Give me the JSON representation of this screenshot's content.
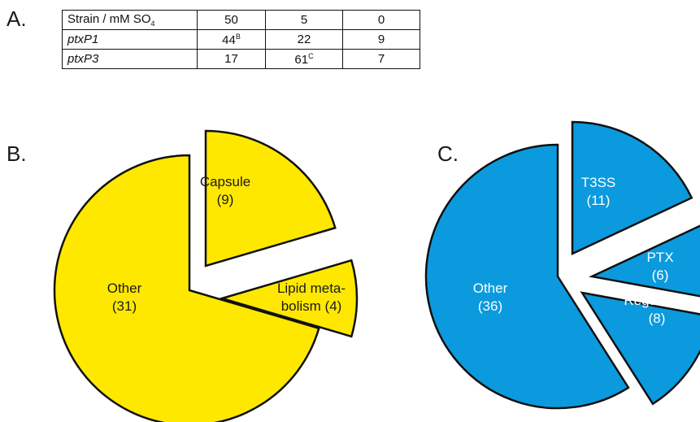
{
  "panel_a": {
    "letter": "A.",
    "header": {
      "label": "Strain / mM SO",
      "label_sub": "4",
      "cols": [
        "50",
        "5",
        "0"
      ]
    },
    "rows": [
      {
        "strain": "ptxP1",
        "values": [
          {
            "v": "44",
            "sup": "B"
          },
          {
            "v": "22",
            "sup": ""
          },
          {
            "v": "9",
            "sup": ""
          }
        ]
      },
      {
        "strain": "ptxP3",
        "values": [
          {
            "v": "17",
            "sup": ""
          },
          {
            "v": "61",
            "sup": "C"
          },
          {
            "v": "7",
            "sup": ""
          }
        ]
      }
    ]
  },
  "chart_data": [
    {
      "type": "pie",
      "panel_label": "B.",
      "fill_color": "#FFE800",
      "text_color": "#1a1a1a",
      "slices": [
        {
          "label_lines": [
            "Capsule",
            "(9)"
          ],
          "value": 9,
          "exploded": true
        },
        {
          "label_lines": [
            "Lipid meta-",
            "bolism (4)"
          ],
          "value": 4,
          "exploded": true
        },
        {
          "label_lines": [
            "Other",
            "(31)"
          ],
          "value": 31,
          "exploded": false
        }
      ]
    },
    {
      "type": "pie",
      "panel_label": "C.",
      "fill_color": "#0B9ADE",
      "text_color": "#ffffff",
      "slices": [
        {
          "label_lines": [
            "T3SS",
            "(11)"
          ],
          "value": 11,
          "exploded": true
        },
        {
          "label_lines": [
            "PTX",
            "(6)"
          ],
          "value": 6,
          "exploded": true
        },
        {
          "label_lines": [
            "Regulation",
            "(8)"
          ],
          "value": 8,
          "exploded": true
        },
        {
          "label_lines": [
            "Other",
            "(36)"
          ],
          "value": 36,
          "exploded": false
        }
      ]
    }
  ]
}
